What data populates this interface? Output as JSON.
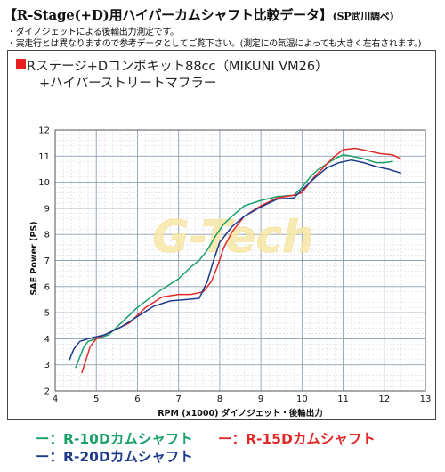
{
  "header": {
    "title": "【R-Stage(+D)用ハイパーカムシャフト比較データ】",
    "source": "(SP武川調べ)",
    "note1": "・ダイノジェットによる後輪出力測定です。",
    "note2": "・実走行とは異なりますので参考データとしてご覧下さい。(測定にの気温によっても大きく左右されます。)"
  },
  "subtitle": {
    "line1": "Rステージ+Dコンボキット88cc（MIKUNI VM26）",
    "line2": "+ハイパーストリートマフラー",
    "marker_color": "#e82020"
  },
  "watermark": "G-Tech",
  "legend": {
    "items": [
      {
        "dash": "ー：",
        "label": "R-10Dカムシャフト",
        "color": "#1aa069"
      },
      {
        "dash": "ー：",
        "label": "R-15Dカムシャフト",
        "color": "#e02a2a"
      },
      {
        "dash": "ー：",
        "label": "R-20Dカムシャフト",
        "color": "#1f3a8a"
      }
    ]
  },
  "chart_data": {
    "type": "line",
    "xlabel": "RPM (x1000) ダイノジェット・後輪出力",
    "ylabel": "SAE Power (PS)",
    "xlim": [
      4,
      13
    ],
    "ylim": [
      2,
      12
    ],
    "xticks": [
      4,
      5,
      6,
      7,
      8,
      9,
      10,
      11,
      12,
      13
    ],
    "yticks": [
      2,
      3,
      4,
      5,
      6,
      7,
      8,
      9,
      10,
      11,
      12
    ],
    "grid": true,
    "series": [
      {
        "name": "R-10Dカムシャフト",
        "color": "#1aa069",
        "points": [
          [
            4.5,
            2.9
          ],
          [
            4.6,
            3.3
          ],
          [
            4.7,
            3.7
          ],
          [
            4.8,
            3.9
          ],
          [
            5.0,
            4.0
          ],
          [
            5.3,
            4.15
          ],
          [
            5.6,
            4.6
          ],
          [
            6.0,
            5.2
          ],
          [
            6.5,
            5.8
          ],
          [
            7.0,
            6.3
          ],
          [
            7.3,
            6.75
          ],
          [
            7.5,
            7.0
          ],
          [
            7.7,
            7.4
          ],
          [
            7.9,
            7.95
          ],
          [
            8.1,
            8.4
          ],
          [
            8.3,
            8.7
          ],
          [
            8.6,
            9.1
          ],
          [
            9.0,
            9.3
          ],
          [
            9.4,
            9.45
          ],
          [
            9.8,
            9.5
          ],
          [
            10.0,
            9.8
          ],
          [
            10.2,
            10.2
          ],
          [
            10.4,
            10.5
          ],
          [
            10.6,
            10.7
          ],
          [
            10.8,
            10.9
          ],
          [
            11.0,
            11.05
          ],
          [
            11.2,
            11.0
          ],
          [
            11.5,
            10.9
          ],
          [
            11.8,
            10.75
          ],
          [
            12.0,
            10.75
          ],
          [
            12.2,
            10.8
          ]
        ]
      },
      {
        "name": "R-15Dカムシャフト",
        "color": "#e02a2a",
        "points": [
          [
            4.65,
            2.7
          ],
          [
            4.75,
            3.2
          ],
          [
            4.85,
            3.7
          ],
          [
            5.0,
            4.0
          ],
          [
            5.4,
            4.3
          ],
          [
            5.8,
            4.6
          ],
          [
            6.2,
            5.2
          ],
          [
            6.6,
            5.6
          ],
          [
            7.0,
            5.7
          ],
          [
            7.3,
            5.7
          ],
          [
            7.6,
            5.8
          ],
          [
            7.8,
            6.2
          ],
          [
            7.95,
            6.8
          ],
          [
            8.1,
            7.5
          ],
          [
            8.3,
            8.1
          ],
          [
            8.6,
            8.7
          ],
          [
            9.0,
            9.1
          ],
          [
            9.4,
            9.4
          ],
          [
            9.8,
            9.5
          ],
          [
            10.0,
            9.6
          ],
          [
            10.3,
            10.2
          ],
          [
            10.6,
            10.7
          ],
          [
            10.8,
            11.0
          ],
          [
            11.0,
            11.25
          ],
          [
            11.3,
            11.3
          ],
          [
            11.6,
            11.2
          ],
          [
            11.9,
            11.1
          ],
          [
            12.2,
            11.05
          ],
          [
            12.4,
            10.9
          ]
        ]
      },
      {
        "name": "R-20Dカムシャフト",
        "color": "#1f3a8a",
        "points": [
          [
            4.35,
            3.2
          ],
          [
            4.45,
            3.6
          ],
          [
            4.6,
            3.9
          ],
          [
            4.8,
            4.0
          ],
          [
            5.2,
            4.15
          ],
          [
            5.6,
            4.45
          ],
          [
            6.0,
            4.85
          ],
          [
            6.4,
            5.25
          ],
          [
            6.8,
            5.45
          ],
          [
            7.2,
            5.5
          ],
          [
            7.5,
            5.55
          ],
          [
            7.7,
            6.2
          ],
          [
            7.85,
            7.0
          ],
          [
            8.0,
            7.7
          ],
          [
            8.3,
            8.3
          ],
          [
            8.6,
            8.7
          ],
          [
            9.0,
            9.05
          ],
          [
            9.4,
            9.35
          ],
          [
            9.8,
            9.4
          ],
          [
            10.0,
            9.7
          ],
          [
            10.3,
            10.15
          ],
          [
            10.6,
            10.55
          ],
          [
            10.9,
            10.75
          ],
          [
            11.2,
            10.85
          ],
          [
            11.5,
            10.75
          ],
          [
            11.8,
            10.6
          ],
          [
            12.1,
            10.5
          ],
          [
            12.4,
            10.35
          ]
        ]
      }
    ]
  }
}
